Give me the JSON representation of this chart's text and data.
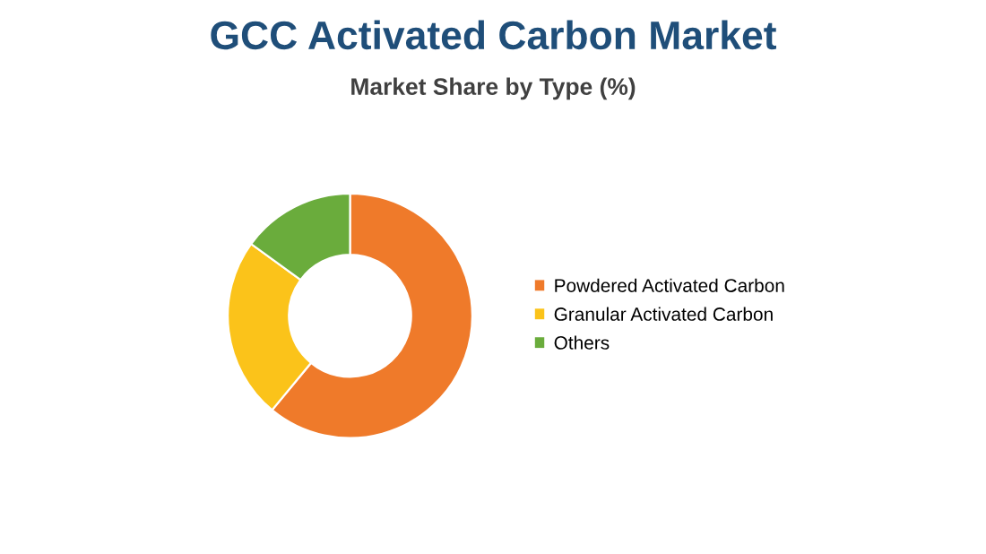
{
  "chart_data": {
    "type": "donut",
    "title": "GCC Activated Carbon Market",
    "subtitle": "Market Share by Type (%)",
    "categories": [
      "Powdered Activated Carbon",
      "Granular Activated Carbon",
      "Others"
    ],
    "values": [
      61,
      24,
      15
    ],
    "colors": [
      "#ef7a2a",
      "#fbc31a",
      "#6aac3c"
    ],
    "legend": "right"
  }
}
